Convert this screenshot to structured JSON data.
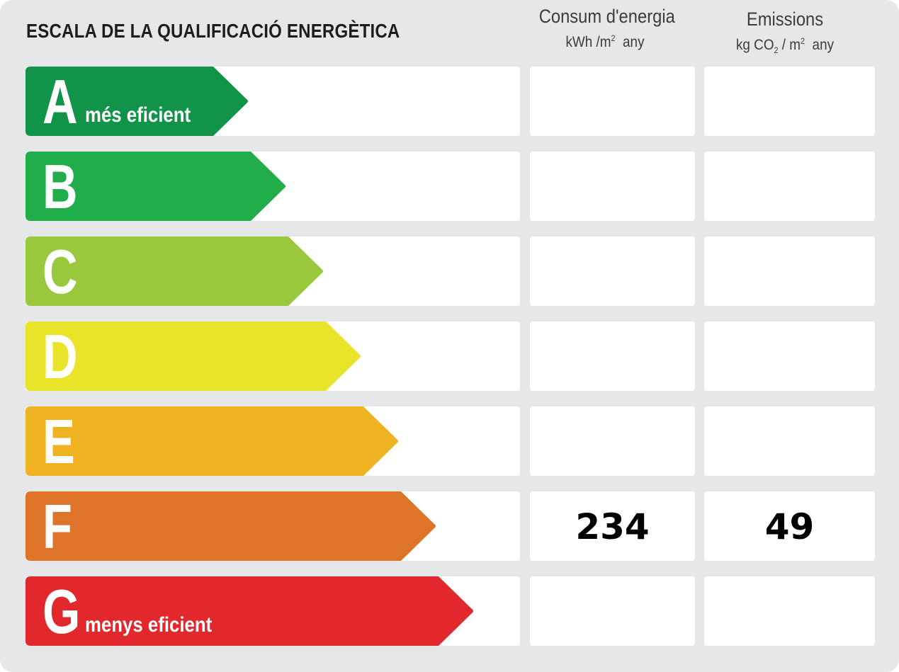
{
  "title": "ESCALA DE LA QUALIFICACIÓ ENERGÈTICA",
  "columns": {
    "consumption": {
      "title": "Consum d'energia",
      "unit_main": "kWh /m",
      "unit_sup": "2",
      "unit_tail": "  any"
    },
    "emissions": {
      "title": "Emissions",
      "unit_main": "kg CO",
      "unit_sub": "2",
      "unit_mid": " / m",
      "unit_sup": "2",
      "unit_tail": "  any"
    }
  },
  "classes": [
    {
      "letter": "A",
      "label": "més eficient",
      "color": "#11934a",
      "consumption": "",
      "emissions": ""
    },
    {
      "letter": "B",
      "label": "",
      "color": "#21ae4a",
      "consumption": "",
      "emissions": ""
    },
    {
      "letter": "C",
      "label": "",
      "color": "#99c83d",
      "consumption": "",
      "emissions": ""
    },
    {
      "letter": "D",
      "label": "",
      "color": "#e9e42a",
      "consumption": "",
      "emissions": ""
    },
    {
      "letter": "E",
      "label": "",
      "color": "#efb321",
      "consumption": "",
      "emissions": ""
    },
    {
      "letter": "F",
      "label": "",
      "color": "#dd742a",
      "consumption": "234",
      "emissions": "49"
    },
    {
      "letter": "G",
      "label": "menys eficient",
      "color": "#e2282c",
      "consumption": "",
      "emissions": ""
    }
  ]
}
